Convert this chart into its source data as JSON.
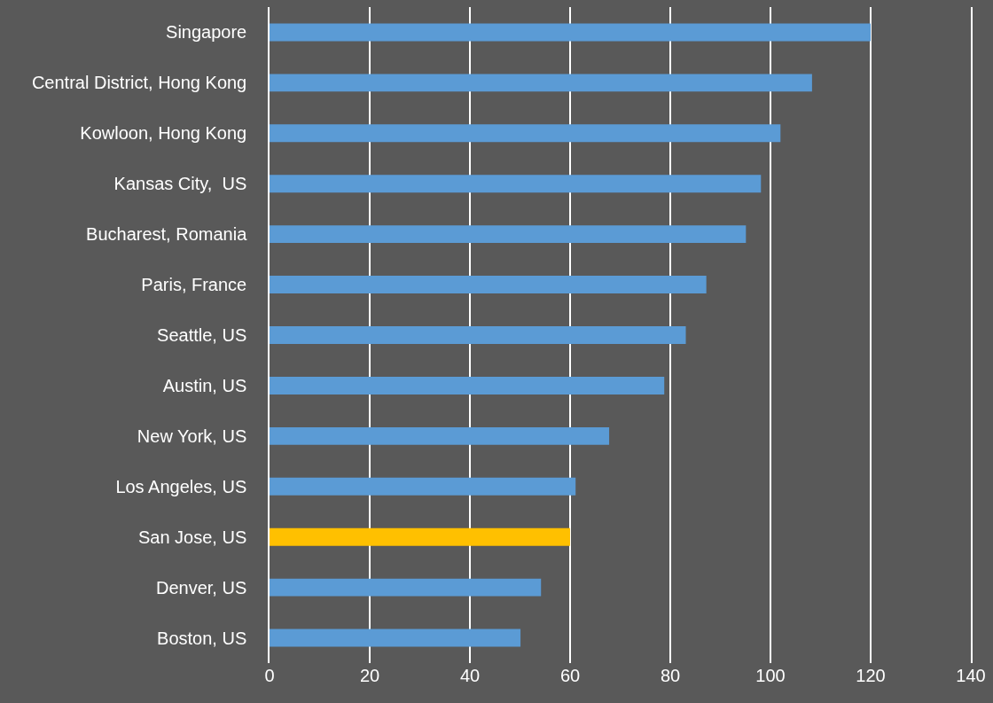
{
  "chart_data": {
    "type": "bar",
    "orientation": "horizontal",
    "categories": [
      "Singapore",
      "Central District, Hong Kong",
      "Kowloon, Hong Kong",
      "Kansas City,  US",
      "Bucharest, Romania",
      "Paris, France",
      "Seattle, US",
      "Austin, US",
      "New York, US",
      "Los Angeles, US",
      "San Jose, US",
      "Denver, US",
      "Boston, US"
    ],
    "values": [
      120,
      108.3,
      102,
      98.1,
      95.1,
      87.2,
      83.1,
      78.8,
      67.8,
      61.1,
      60,
      54.2,
      50.1
    ],
    "colors": [
      "#5b9bd5",
      "#5b9bd5",
      "#5b9bd5",
      "#5b9bd5",
      "#5b9bd5",
      "#5b9bd5",
      "#5b9bd5",
      "#5b9bd5",
      "#5b9bd5",
      "#5b9bd5",
      "#ffc000",
      "#5b9bd5",
      "#5b9bd5"
    ],
    "xlim": [
      0,
      140
    ],
    "xticks": [
      0,
      20,
      40,
      60,
      80,
      100,
      120,
      140
    ],
    "grid": "x"
  }
}
